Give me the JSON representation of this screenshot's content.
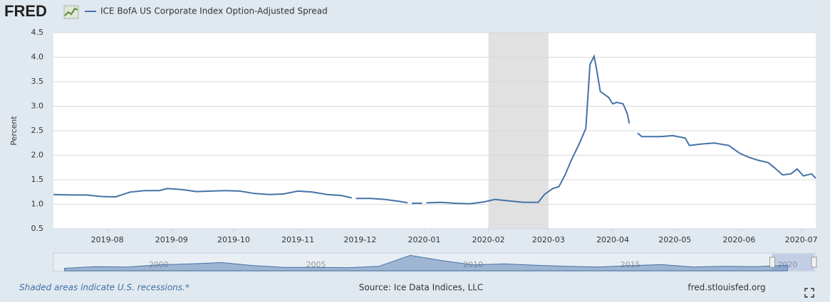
{
  "chart_data": {
    "type": "line",
    "logo": "FRED",
    "title": "ICE BofA US Corporate Index Option-Adjusted Spread",
    "y_label": "Percent",
    "footnote": "Shaded areas indicate U.S. recessions.*",
    "source": "Source: Ice Data Indices, LLC",
    "site": "fred.stlouisfed.org",
    "xlim": [
      "2019-07-06",
      "2020-07-08"
    ],
    "xticks": [
      "2019-08",
      "2019-09",
      "2019-10",
      "2019-11",
      "2019-12",
      "2020-01",
      "2020-02",
      "2020-03",
      "2020-04",
      "2020-05",
      "2020-06",
      "2020-07"
    ],
    "ylim": [
      0.5,
      4.5
    ],
    "yticks": [
      0.5,
      {
        "value": 1,
        "label": "1.0"
      },
      1.5,
      {
        "value": 2,
        "label": "2.0"
      },
      2.5,
      {
        "value": 3,
        "label": "3.0"
      },
      3.5,
      {
        "value": 4,
        "label": "4.0"
      },
      4.5
    ],
    "grid": true,
    "recessions": [
      [
        "2020-02-01",
        "2020-03-01"
      ]
    ],
    "series": [
      {
        "name": "ICE BofA US Corporate Index Option-Adjusted Spread",
        "color": "#4572a7",
        "x": [
          "2019-07-06",
          "2019-07-15",
          "2019-07-22",
          "2019-07-29",
          "2019-08-05",
          "2019-08-12",
          "2019-08-19",
          "2019-08-26",
          "2019-08-30",
          "2019-09-06",
          "2019-09-13",
          "2019-09-20",
          "2019-09-27",
          "2019-10-04",
          "2019-10-11",
          "2019-10-18",
          "2019-10-25",
          "2019-11-01",
          "2019-11-08",
          "2019-11-15",
          "2019-11-22",
          "2019-11-27",
          "2019-11-28",
          "2019-11-29",
          "2019-12-06",
          "2019-12-13",
          "2019-12-20",
          "2019-12-24",
          "2019-12-25",
          "2019-12-26",
          "2019-12-31",
          "2020-01-01",
          "2020-01-02",
          "2020-01-09",
          "2020-01-16",
          "2020-01-23",
          "2020-01-30",
          "2020-02-04",
          "2020-02-11",
          "2020-02-18",
          "2020-02-25",
          "2020-02-28",
          "2020-03-03",
          "2020-03-06",
          "2020-03-09",
          "2020-03-12",
          "2020-03-16",
          "2020-03-19",
          "2020-03-21",
          "2020-03-23",
          "2020-03-24",
          "2020-03-26",
          "2020-03-30",
          "2020-04-01",
          "2020-04-03",
          "2020-04-06",
          "2020-04-08",
          "2020-04-09",
          "2020-04-10",
          "2020-04-13",
          "2020-04-15",
          "2020-04-24",
          "2020-04-30",
          "2020-05-06",
          "2020-05-08",
          "2020-05-14",
          "2020-05-20",
          "2020-05-27",
          "2020-06-01",
          "2020-06-05",
          "2020-06-10",
          "2020-06-15",
          "2020-06-18",
          "2020-06-22",
          "2020-06-26",
          "2020-06-29",
          "2020-07-02",
          "2020-07-06",
          "2020-07-08"
        ],
        "values": [
          1.2,
          1.19,
          1.19,
          1.16,
          1.15,
          1.25,
          1.28,
          1.28,
          1.32,
          1.3,
          1.26,
          1.27,
          1.28,
          1.27,
          1.22,
          1.2,
          1.21,
          1.27,
          1.25,
          1.2,
          1.18,
          1.13,
          null,
          1.12,
          1.12,
          1.1,
          1.06,
          1.03,
          null,
          1.02,
          1.02,
          null,
          1.03,
          1.04,
          1.02,
          1.01,
          1.05,
          1.1,
          1.07,
          1.04,
          1.04,
          1.2,
          1.32,
          1.36,
          1.6,
          1.9,
          2.25,
          2.55,
          3.85,
          4.02,
          3.8,
          3.3,
          3.18,
          3.05,
          3.08,
          3.05,
          2.85,
          2.65,
          null,
          2.45,
          2.38,
          2.38,
          2.4,
          2.35,
          2.2,
          2.23,
          2.25,
          2.2,
          2.05,
          1.97,
          1.9,
          1.85,
          1.75,
          1.6,
          1.62,
          1.72,
          1.58,
          1.62,
          1.53
        ]
      }
    ],
    "navigator": {
      "xlim": [
        1996.65,
        2020.9
      ],
      "xticks": [
        2000,
        2005,
        2010,
        2015,
        2020
      ],
      "x": [
        1997,
        1998,
        1999,
        2000,
        2001,
        2002,
        2003,
        2004,
        2005,
        2006,
        2007,
        2008,
        2009,
        2010,
        2011,
        2012,
        2013,
        2014,
        2015,
        2016,
        2017,
        2018,
        2019,
        2020
      ],
      "values": [
        0.7,
        1.2,
        1.1,
        1.7,
        2.0,
        2.4,
        1.5,
        1.0,
        1.0,
        0.9,
        1.3,
        4.5,
        3.0,
        1.7,
        2.0,
        1.6,
        1.3,
        1.1,
        1.5,
        1.8,
        1.1,
        1.3,
        1.2,
        1.6
      ],
      "ylim": [
        0,
        5
      ]
    }
  }
}
